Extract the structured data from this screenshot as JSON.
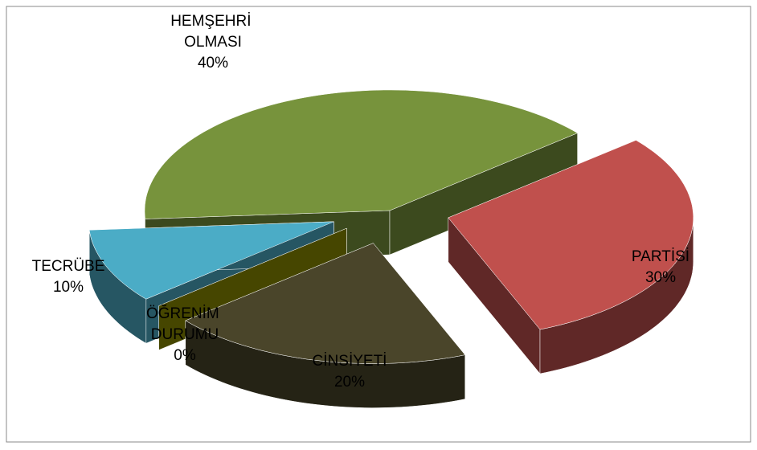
{
  "chart_data": {
    "type": "pie3d",
    "categories": [
      "HEMŞEHRİ OLMASI",
      "PARTİSİ",
      "CİNSİYETİ",
      "ÖĞRENİM DURUMU",
      "TECRÜBE"
    ],
    "values": [
      40,
      30,
      20,
      0,
      10
    ],
    "value_labels": [
      "40%",
      "30%",
      "20%",
      "0%",
      "10%"
    ],
    "colors": [
      "#77933c",
      "#c0504d",
      "#4a452a",
      "#8b8b00",
      "#4bacc6"
    ]
  }
}
